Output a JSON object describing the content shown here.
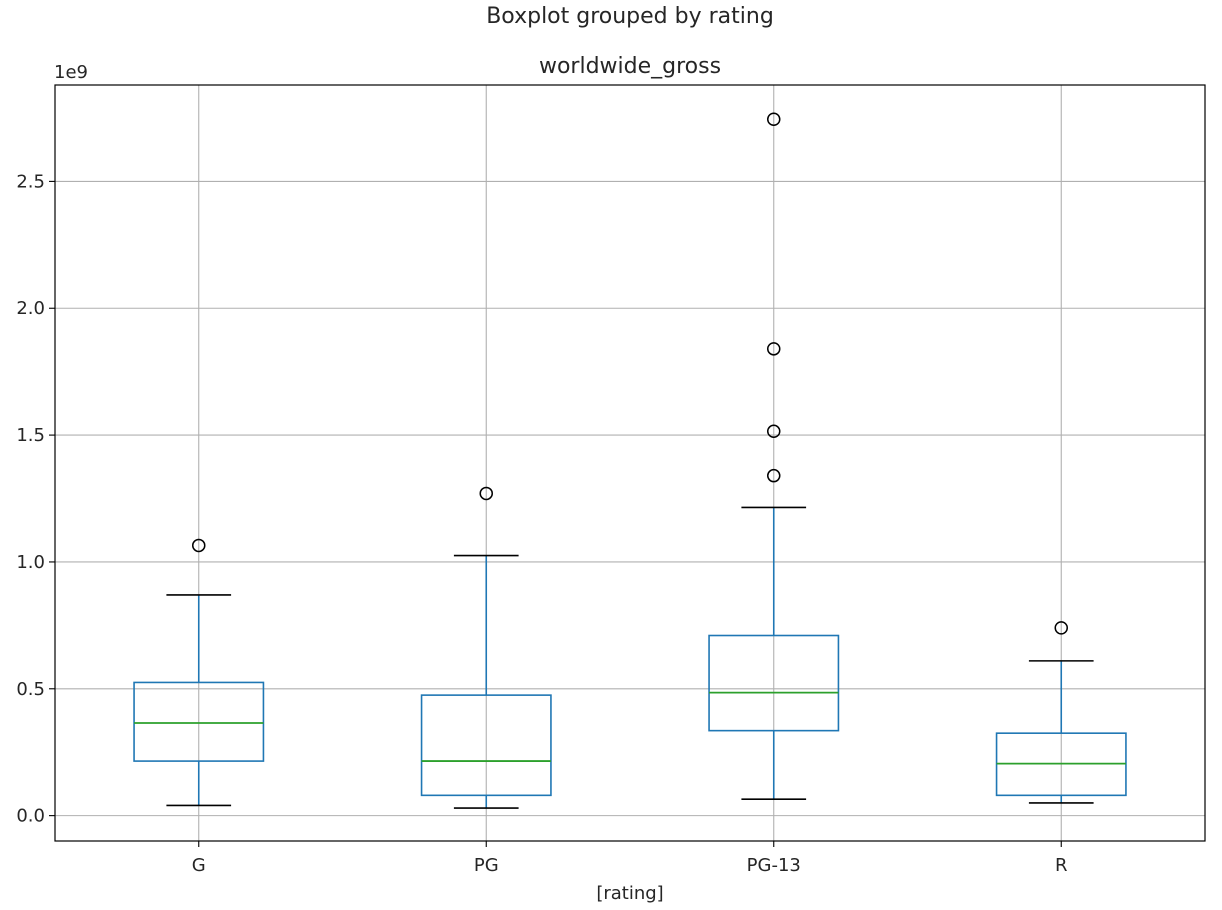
{
  "chart_data": {
    "type": "boxplot",
    "suptitle": "Boxplot grouped by rating",
    "title": "worldwide_gross",
    "xlabel": "[rating]",
    "ylabel": "",
    "y_offset_label": "1e9",
    "ylim": [
      -0.1,
      2.88
    ],
    "yticks": [
      0.0,
      0.5,
      1.0,
      1.5,
      2.0,
      2.5
    ],
    "ytick_labels": [
      "0.0",
      "0.5",
      "1.0",
      "1.5",
      "2.0",
      "2.5"
    ],
    "grid": true,
    "categories": [
      "G",
      "PG",
      "PG-13",
      "R"
    ],
    "boxes": [
      {
        "name": "G",
        "whislo": 0.04,
        "q1": 0.215,
        "med": 0.365,
        "q3": 0.525,
        "whishi": 0.87,
        "fliers": [
          1.065
        ]
      },
      {
        "name": "PG",
        "whislo": 0.03,
        "q1": 0.08,
        "med": 0.215,
        "q3": 0.475,
        "whishi": 1.025,
        "fliers": [
          1.27
        ]
      },
      {
        "name": "PG-13",
        "whislo": 0.065,
        "q1": 0.335,
        "med": 0.485,
        "q3": 0.71,
        "whishi": 1.215,
        "fliers": [
          1.34,
          1.515,
          1.84,
          2.745
        ]
      },
      {
        "name": "R",
        "whislo": 0.05,
        "q1": 0.08,
        "med": 0.205,
        "q3": 0.325,
        "whishi": 0.61,
        "fliers": [
          0.74
        ]
      }
    ],
    "colors": {
      "box": "#1f77b4",
      "median": "#2ca02c",
      "cap": "#000000",
      "grid": "#b0b0b0",
      "axes": "#000000",
      "flier_edge": "#000000"
    }
  }
}
